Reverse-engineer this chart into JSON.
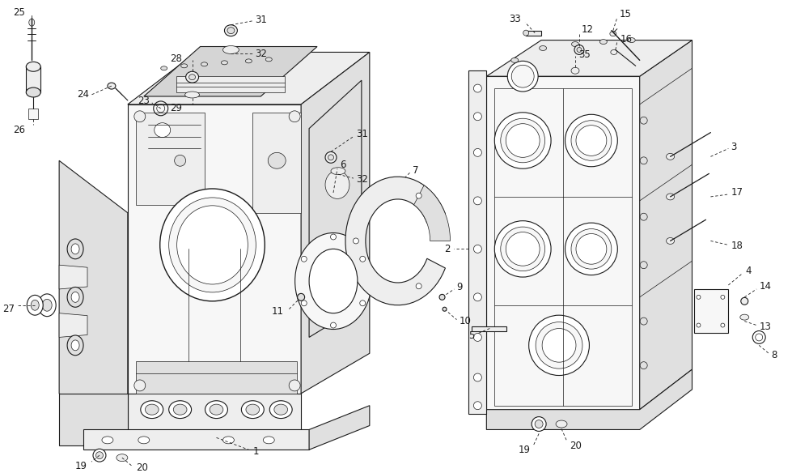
{
  "background_color": "#ffffff",
  "line_color": "#1a1a1a",
  "font_size": 8.5,
  "fig_width": 10.0,
  "fig_height": 5.84,
  "dpi": 100,
  "face_light": "#f7f7f7",
  "face_mid": "#eeeeee",
  "face_dark": "#e0e0e0",
  "face_darker": "#d5d5d5",
  "face_white": "#ffffff",
  "stroke": 0.8,
  "stroke_thin": 0.5,
  "stroke_thick": 1.0
}
